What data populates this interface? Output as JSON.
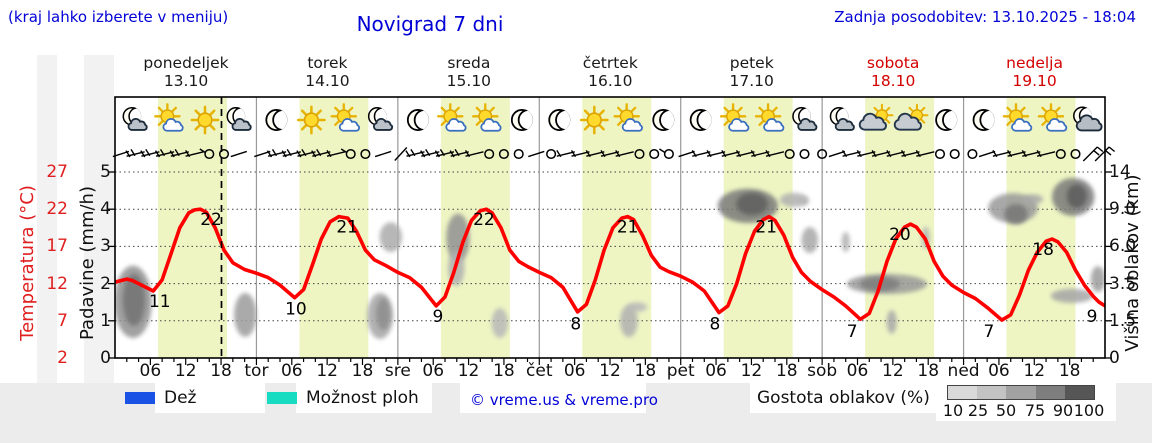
{
  "header": {
    "hint": "(kraj lahko izberete v meniju)",
    "title": "Novigrad 7 dni",
    "updated": "Zadnja posodobitev: 13.10.2025 - 18:04"
  },
  "colors": {
    "blue_text": "#0202d6",
    "red_text": "#d40000",
    "temp_axis": "#e02020",
    "curve": "#ff0000",
    "day_band": "#eef5c3",
    "rain_legend": "#1a52e6",
    "showers_legend": "#17dcc1",
    "grid": "#444444",
    "day_separator": "#999999"
  },
  "days": [
    {
      "name": "ponedeljek",
      "date": "13.10",
      "red": false,
      "icons": [
        "moon-cloud",
        "sun-cloud",
        "sun",
        "moon-cloud"
      ]
    },
    {
      "name": "torek",
      "date": "14.10",
      "red": false,
      "icons": [
        "moon",
        "sun",
        "sun-cloud",
        "moon-cloud"
      ]
    },
    {
      "name": "sreda",
      "date": "15.10",
      "red": false,
      "icons": [
        "moon",
        "sun-cloud",
        "sun-cloud",
        "moon"
      ]
    },
    {
      "name": "četrtek",
      "date": "16.10",
      "red": false,
      "icons": [
        "moon",
        "sun",
        "sun-cloud",
        "moon"
      ]
    },
    {
      "name": "petek",
      "date": "17.10",
      "red": false,
      "icons": [
        "moon",
        "sun-cloud",
        "sun-cloud",
        "moon-cloud"
      ]
    },
    {
      "name": "sobota",
      "date": "18.10",
      "red": true,
      "icons": [
        "moon-cloud",
        "cloud-sun",
        "cloud-sun",
        "moon"
      ]
    },
    {
      "name": "nedelja",
      "date": "19.10",
      "red": true,
      "icons": [
        "moon",
        "sun-cloud",
        "sun-cloud",
        "moon-bigcloud"
      ]
    }
  ],
  "axes": {
    "temp": {
      "label": "Temperatura (°C)",
      "ticks": [
        "27",
        "22",
        "17",
        "12",
        "7",
        "2"
      ]
    },
    "precip": {
      "label": "Padavine (mm/h)",
      "ticks": [
        "5",
        "4",
        "3",
        "2",
        "1",
        "0"
      ]
    },
    "cloud": {
      "label": "Višina oblakov (km)",
      "ticks": [
        "14",
        "9.0",
        "6.0",
        "3.5",
        "1.5",
        "0"
      ]
    },
    "bottom": {
      "hour_labels": [
        "06",
        "12",
        "18"
      ],
      "day_abbrs": [
        "tor",
        "sre",
        "čet",
        "pet",
        "sob",
        "ned"
      ]
    }
  },
  "legend": {
    "rain_label": "Dež",
    "showers_label": "Možnost ploh",
    "copyright": "© vreme.us & vreme.pro",
    "cloud_density_label": "Gostota oblakov (%)",
    "density_ticks": [
      "10",
      "25",
      "50",
      "75",
      "90",
      "100"
    ],
    "density_colors": [
      "#d9d9d9",
      "#c3c3c3",
      "#a2a2a2",
      "#7e7e7e",
      "#565656"
    ]
  },
  "chart_data": {
    "type": "line",
    "x_unit": "hour",
    "x_range": [
      0,
      168
    ],
    "temp_axis_range": [
      2,
      27
    ],
    "precip_axis_range": [
      0,
      5
    ],
    "cloud_height_ticks_km": [
      0,
      1.5,
      3.5,
      6.0,
      9.0,
      14
    ],
    "daylight": {
      "sunrise_h": 7.3,
      "sunset_h": 19.0
    },
    "now_t": 18.07,
    "daily_summary": [
      {
        "day": "13.10",
        "min": 11,
        "max": 22
      },
      {
        "day": "14.10",
        "min": 10,
        "max": 21
      },
      {
        "day": "15.10",
        "min": 9,
        "max": 22
      },
      {
        "day": "16.10",
        "min": 8,
        "max": 21
      },
      {
        "day": "17.10",
        "min": 8,
        "max": 21
      },
      {
        "day": "18.10",
        "min": 7,
        "max": 20
      },
      {
        "day": "19.10",
        "min": 7,
        "max": 18,
        "end": 9
      }
    ],
    "series": [
      {
        "name": "Temperatura",
        "color": "#ff0000",
        "points": [
          [
            0,
            12.2
          ],
          [
            2,
            12.6
          ],
          [
            3,
            12.4
          ],
          [
            5,
            11.6
          ],
          [
            6.5,
            11.0
          ],
          [
            8,
            12.5
          ],
          [
            9.5,
            16
          ],
          [
            11,
            19.5
          ],
          [
            12.5,
            21.5
          ],
          [
            13.5,
            21.9
          ],
          [
            14.5,
            22.0
          ],
          [
            15.5,
            21.6
          ],
          [
            17,
            19.5
          ],
          [
            18.5,
            16.5
          ],
          [
            20,
            14.8
          ],
          [
            22,
            13.9
          ],
          [
            24,
            13.4
          ],
          [
            26,
            12.8
          ],
          [
            28,
            11.8
          ],
          [
            30.5,
            10.1
          ],
          [
            32,
            11.2
          ],
          [
            33.5,
            14.5
          ],
          [
            35,
            18
          ],
          [
            36.5,
            20.3
          ],
          [
            38,
            21.0
          ],
          [
            39.5,
            20.8
          ],
          [
            41,
            19
          ],
          [
            42.5,
            16.5
          ],
          [
            44,
            15.2
          ],
          [
            46,
            14.4
          ],
          [
            48,
            13.5
          ],
          [
            50,
            12.8
          ],
          [
            52,
            11.5
          ],
          [
            54.5,
            9.0
          ],
          [
            56,
            10.2
          ],
          [
            57.5,
            13.5
          ],
          [
            59,
            17.5
          ],
          [
            60.5,
            20.5
          ],
          [
            62,
            21.8
          ],
          [
            63,
            22.0
          ],
          [
            64,
            21.5
          ],
          [
            65.5,
            19.5
          ],
          [
            67,
            16.5
          ],
          [
            68.5,
            15.0
          ],
          [
            70,
            14.3
          ],
          [
            72,
            13.5
          ],
          [
            74,
            12.8
          ],
          [
            76,
            11.5
          ],
          [
            78.5,
            8.2
          ],
          [
            80,
            9.2
          ],
          [
            81.5,
            12.5
          ],
          [
            83,
            16.5
          ],
          [
            84.5,
            19.5
          ],
          [
            86,
            20.8
          ],
          [
            87,
            21.0
          ],
          [
            88,
            20.6
          ],
          [
            89.5,
            18.5
          ],
          [
            91,
            15.8
          ],
          [
            92.5,
            14.2
          ],
          [
            94,
            13.6
          ],
          [
            96,
            13.0
          ],
          [
            98,
            12.2
          ],
          [
            100,
            11.0
          ],
          [
            102.5,
            8.1
          ],
          [
            104,
            9.0
          ],
          [
            105.5,
            12.0
          ],
          [
            107,
            16.0
          ],
          [
            108.5,
            19.0
          ],
          [
            110,
            20.6
          ],
          [
            111,
            21.0
          ],
          [
            112,
            20.5
          ],
          [
            113.5,
            18.5
          ],
          [
            115,
            15.5
          ],
          [
            116.5,
            13.5
          ],
          [
            118,
            12.3
          ],
          [
            120,
            11.2
          ],
          [
            122,
            10.2
          ],
          [
            124,
            9.0
          ],
          [
            126.5,
            7.2
          ],
          [
            128,
            8.0
          ],
          [
            129.5,
            11.0
          ],
          [
            131,
            15.0
          ],
          [
            132.5,
            18.0
          ],
          [
            134,
            19.6
          ],
          [
            135,
            20.0
          ],
          [
            136,
            19.6
          ],
          [
            137.5,
            18.0
          ],
          [
            139,
            15.0
          ],
          [
            140.5,
            13.0
          ],
          [
            142,
            11.8
          ],
          [
            144,
            10.8
          ],
          [
            146,
            10.0
          ],
          [
            148,
            8.8
          ],
          [
            150.5,
            7.1
          ],
          [
            152,
            7.8
          ],
          [
            153.5,
            10.5
          ],
          [
            155,
            13.8
          ],
          [
            156.5,
            16.2
          ],
          [
            158,
            17.7
          ],
          [
            159,
            18.0
          ],
          [
            160,
            17.6
          ],
          [
            161.5,
            16.2
          ],
          [
            163,
            13.8
          ],
          [
            164.5,
            11.8
          ],
          [
            166,
            10.3
          ],
          [
            167,
            9.5
          ],
          [
            168,
            9.0
          ]
        ]
      }
    ],
    "point_labels": [
      {
        "t": 7.6,
        "v": 11
      },
      {
        "t": 16.3,
        "v": 22
      },
      {
        "t": 30.7,
        "v": 10
      },
      {
        "t": 39.4,
        "v": 21
      },
      {
        "t": 54.8,
        "v": 9
      },
      {
        "t": 62.6,
        "v": 22
      },
      {
        "t": 78.2,
        "v": 8
      },
      {
        "t": 87,
        "v": 21
      },
      {
        "t": 101.8,
        "v": 8
      },
      {
        "t": 110.5,
        "v": 21
      },
      {
        "t": 125.1,
        "v": 7
      },
      {
        "t": 133.2,
        "v": 20
      },
      {
        "t": 148.3,
        "v": 7
      },
      {
        "t": 157.5,
        "v": 18
      },
      {
        "t": 165.8,
        "v": 9
      }
    ],
    "cloud_blobs": [
      [
        3.05,
        1.51,
        3.2,
        0.97,
        55
      ],
      [
        3.2,
        1.56,
        1.9,
        0.7,
        75
      ],
      [
        22.1,
        1.16,
        1.9,
        0.59,
        48
      ],
      [
        45.0,
        1.13,
        2.2,
        0.62,
        42
      ],
      [
        45.5,
        1.18,
        1.2,
        0.43,
        58
      ],
      [
        46.8,
        3.25,
        1.9,
        0.4,
        38
      ],
      [
        58.2,
        3.23,
        2.0,
        0.65,
        55
      ],
      [
        57.9,
        2.42,
        1.4,
        0.48,
        35
      ],
      [
        65.3,
        0.94,
        1.4,
        0.4,
        30
      ],
      [
        87.2,
        0.99,
        1.5,
        0.43,
        35
      ],
      [
        88.6,
        1.37,
        1.7,
        0.13,
        30
      ],
      [
        107.4,
        4.09,
        5.1,
        0.46,
        70
      ],
      [
        108.1,
        4.14,
        2.7,
        0.3,
        88
      ],
      [
        115.2,
        4.25,
        2.4,
        0.19,
        35
      ],
      [
        116.9,
        4.22,
        0.8,
        0.11,
        30
      ],
      [
        117.9,
        3.17,
        1.4,
        0.35,
        40
      ],
      [
        124.0,
        3.12,
        0.7,
        0.27,
        35
      ],
      [
        131.0,
        1.99,
        6.8,
        0.27,
        50
      ],
      [
        129.8,
        1.99,
        3.4,
        0.19,
        68
      ],
      [
        131.8,
        0.97,
        0.85,
        0.32,
        40
      ],
      [
        137.6,
        3.23,
        0.7,
        0.3,
        33
      ],
      [
        152.4,
        4.03,
        4.2,
        0.4,
        50
      ],
      [
        152.9,
        3.87,
        2.0,
        0.27,
        72
      ],
      [
        155.8,
        4.27,
        1.7,
        0.13,
        40
      ],
      [
        162.6,
        4.33,
        3.6,
        0.51,
        70
      ],
      [
        163.2,
        4.35,
        1.7,
        0.32,
        90
      ],
      [
        162.4,
        1.67,
        3.6,
        0.19,
        42
      ],
      [
        166.8,
        2.12,
        1.2,
        0.35,
        48
      ]
    ],
    "wind": [
      [
        1,
        "line"
      ],
      [
        3.5,
        "barb2"
      ],
      [
        6,
        "barb2"
      ],
      [
        8.5,
        "barb2"
      ],
      [
        11,
        "barb2"
      ],
      [
        13.5,
        "barb1"
      ],
      [
        16,
        "calm-stem"
      ],
      [
        18.5,
        "calm"
      ],
      [
        21,
        "line"
      ],
      [
        25,
        "line"
      ],
      [
        27.5,
        "barb2"
      ],
      [
        30,
        "barb2"
      ],
      [
        32.5,
        "barb2"
      ],
      [
        35,
        "barb2"
      ],
      [
        37.5,
        "barb1"
      ],
      [
        40,
        "calm-stem"
      ],
      [
        42.5,
        "calm"
      ],
      [
        45.5,
        "line"
      ],
      [
        48.5,
        "slash"
      ],
      [
        51,
        "barb2"
      ],
      [
        53.5,
        "barb2"
      ],
      [
        56,
        "barb2"
      ],
      [
        58.5,
        "barb2"
      ],
      [
        61,
        "barb1"
      ],
      [
        63.5,
        "calm"
      ],
      [
        66,
        "calm"
      ],
      [
        68.5,
        "calm"
      ],
      [
        71.5,
        "line"
      ],
      [
        74,
        "calm"
      ],
      [
        76.5,
        "barb1"
      ],
      [
        79,
        "barb1"
      ],
      [
        81.5,
        "barb1"
      ],
      [
        84,
        "barb1"
      ],
      [
        86.5,
        "barb1"
      ],
      [
        89,
        "calm"
      ],
      [
        91.5,
        "calm"
      ],
      [
        94,
        "calm-stem"
      ],
      [
        97,
        "line"
      ],
      [
        99.5,
        "barb1"
      ],
      [
        102,
        "barb1"
      ],
      [
        104.5,
        "barb1"
      ],
      [
        107,
        "barb1"
      ],
      [
        109.5,
        "barb1"
      ],
      [
        112,
        "barb1"
      ],
      [
        114.5,
        "calm"
      ],
      [
        117,
        "calm"
      ],
      [
        120,
        "calm"
      ],
      [
        122.5,
        "line"
      ],
      [
        125,
        "barb1"
      ],
      [
        127.5,
        "barb1"
      ],
      [
        130,
        "barb1"
      ],
      [
        132.5,
        "barb1"
      ],
      [
        135,
        "barb1"
      ],
      [
        137.5,
        "barb1"
      ],
      [
        140,
        "calm"
      ],
      [
        142.5,
        "calm"
      ],
      [
        145.5,
        "calm"
      ],
      [
        148,
        "line"
      ],
      [
        150.5,
        "barb1"
      ],
      [
        153,
        "barb1"
      ],
      [
        155.5,
        "barb1"
      ],
      [
        158,
        "barb1"
      ],
      [
        160.5,
        "calm"
      ],
      [
        163,
        "calm"
      ],
      [
        165.5,
        "flag"
      ],
      [
        167.5,
        "flag"
      ]
    ]
  }
}
